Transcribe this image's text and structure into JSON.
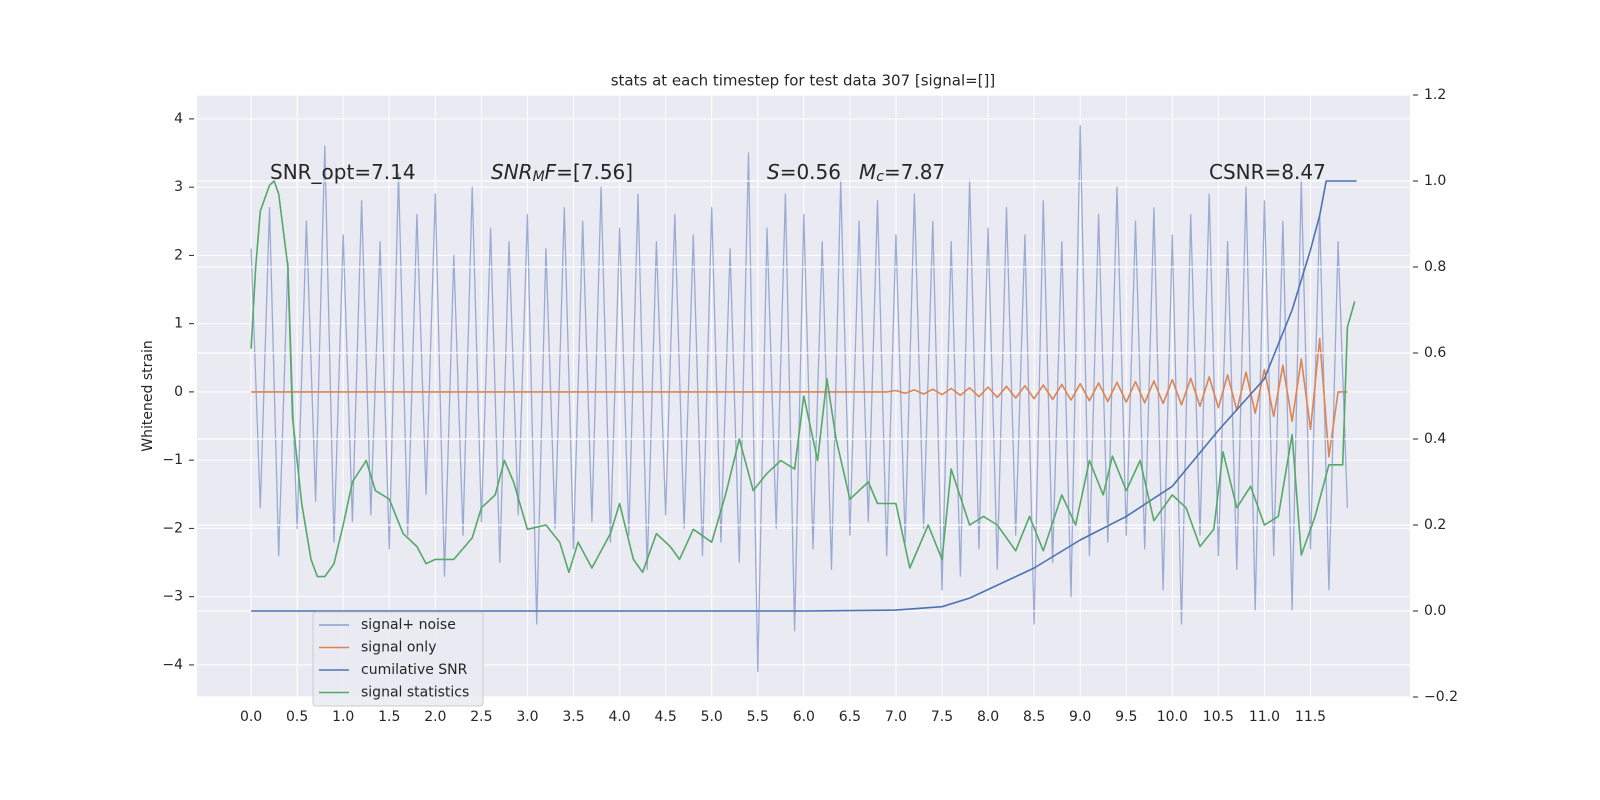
{
  "chart_data": {
    "type": "line",
    "title": "stats at each timestep for test data 307 [signal=[]]",
    "y_label": "Whitened strain",
    "grid": true,
    "legend": "lower left",
    "xlim": [
      -0.587,
      12.58
    ],
    "ylim": [
      -4.47,
      4.35
    ],
    "y2lim": [
      -0.2,
      1.2
    ],
    "xticks": [
      {
        "value": 0,
        "label": "0.0"
      },
      0.5,
      {
        "value": 1,
        "label": "1.0"
      },
      1.5,
      {
        "value": 2,
        "label": "2.0"
      },
      2.5,
      {
        "value": 3,
        "label": "3.0"
      },
      3.5,
      {
        "value": 4,
        "label": "4.0"
      },
      4.5,
      {
        "value": 5,
        "label": "5.0"
      },
      5.5,
      {
        "value": 6,
        "label": "6.0"
      },
      6.5,
      {
        "value": 7,
        "label": "7.0"
      },
      7.5,
      {
        "value": 8,
        "label": "8.0"
      },
      8.5,
      {
        "value": 9,
        "label": "9.0"
      },
      9.5,
      {
        "value": 10,
        "label": "10.0"
      },
      10.5,
      {
        "value": 11,
        "label": "11.0"
      },
      11.5
    ],
    "yticks": [
      {
        "value": -4,
        "label": "−4"
      },
      {
        "value": -3,
        "label": "−3"
      },
      {
        "value": -2,
        "label": "−2"
      },
      {
        "value": -1,
        "label": "−1"
      },
      0,
      1,
      2,
      3,
      4
    ],
    "y2ticks": [
      {
        "value": -0.2,
        "label": "−0.2"
      },
      {
        "value": 0,
        "label": "0.0"
      },
      0.2,
      0.4,
      0.6,
      0.8,
      {
        "value": 1,
        "label": "1.0"
      },
      1.2
    ],
    "annotations": [
      [
        {
          "text": "SNR_opt=7.14"
        }
      ],
      [
        {
          "text": "SNR",
          "style": "italic"
        },
        {
          "text": "M",
          "style": "sub"
        },
        {
          "text": "F",
          "style": "italic"
        },
        {
          "text": "=[7.56]"
        }
      ],
      [
        {
          "text": "S",
          "style": "italic"
        },
        {
          "text": "=0.56"
        }
      ],
      [
        {
          "text": "M",
          "style": "italic"
        },
        {
          "text": "c",
          "style": "sub"
        },
        {
          "text": "=7.87"
        }
      ],
      [
        {
          "text": "CSNR=8.47"
        }
      ]
    ],
    "x": [
      0,
      0.1,
      0.2,
      0.3,
      0.4,
      0.5,
      0.6,
      0.7,
      0.8,
      0.9,
      1,
      1.1,
      1.2,
      1.3,
      1.4,
      1.5,
      1.6,
      1.7,
      1.8,
      1.9,
      2,
      2.1,
      2.2,
      2.3,
      2.4,
      2.5,
      2.6,
      2.7,
      2.8,
      2.9,
      3,
      3.1,
      3.2,
      3.3,
      3.4,
      3.5,
      3.6,
      3.7,
      3.8,
      3.9,
      4,
      4.1,
      4.2,
      4.3,
      4.4,
      4.5,
      4.6,
      4.7,
      4.8,
      4.9,
      5,
      5.1,
      5.2,
      5.3,
      5.4,
      5.5,
      5.6,
      5.7,
      5.8,
      5.9,
      6,
      6.1,
      6.2,
      6.3,
      6.4,
      6.5,
      6.6,
      6.7,
      6.8,
      6.9,
      7,
      7.1,
      7.2,
      7.3,
      7.4,
      7.5,
      7.6,
      7.7,
      7.8,
      7.9,
      8,
      8.1,
      8.2,
      8.3,
      8.4,
      8.5,
      8.6,
      8.7,
      8.8,
      8.9,
      9,
      9.1,
      9.2,
      9.3,
      9.4,
      9.5,
      9.6,
      9.7,
      9.8,
      9.9,
      10,
      10.1,
      10.2,
      10.3,
      10.4,
      10.5,
      10.6,
      10.7,
      10.8,
      10.9,
      11,
      11.1,
      11.2,
      11.3,
      11.4,
      11.5,
      11.6,
      11.7,
      11.8,
      11.9
    ],
    "series": [
      {
        "name": "signal+ noise",
        "color": "#8c9fce",
        "values": [
          2.1,
          -1.7,
          2.7,
          -2.4,
          1.9,
          -2.0,
          2.5,
          -1.6,
          3.6,
          -2.2,
          2.3,
          -1.9,
          2.8,
          -1.8,
          2.2,
          -2.3,
          3.2,
          -2.1,
          2.6,
          -1.5,
          2.9,
          -2.7,
          2.0,
          -2.1,
          3.0,
          -1.9,
          2.4,
          -2.5,
          2.2,
          -1.8,
          2.6,
          -3.4,
          2.1,
          -2.0,
          2.7,
          -2.3,
          2.5,
          -1.9,
          3.0,
          -2.2,
          2.4,
          -2.1,
          2.9,
          -2.6,
          2.2,
          -1.8,
          2.6,
          -2.0,
          2.3,
          -2.4,
          2.7,
          -2.2,
          2.1,
          -2.5,
          3.5,
          -4.1,
          2.4,
          -2.0,
          2.9,
          -3.5,
          2.6,
          -2.3,
          2.2,
          -2.6,
          3.1,
          -2.1,
          2.5,
          -1.9,
          2.8,
          -2.4,
          2.3,
          -2.2,
          2.9,
          -2.0,
          2.5,
          -2.9,
          2.2,
          -2.7,
          3.1,
          -2.3,
          2.4,
          -2.6,
          2.7,
          -2.1,
          2.3,
          -3.4,
          2.8,
          -2.5,
          2.2,
          -3.0,
          3.9,
          -2.4,
          2.6,
          -2.2,
          3.0,
          -2.1,
          2.5,
          -2.3,
          2.7,
          -2.9,
          2.3,
          -3.4,
          2.6,
          -2.1,
          2.9,
          -2.4,
          2.2,
          -2.6,
          3.0,
          -3.2,
          2.8,
          -2.4,
          2.5,
          -3.2,
          3.1,
          -2.3,
          2.6,
          -2.9,
          2.2,
          -1.7
        ]
      },
      {
        "name": "signal only",
        "color": "#dd8452",
        "values": [
          0,
          0,
          0,
          0,
          0,
          0,
          0,
          0,
          0,
          0,
          0,
          0,
          0,
          0,
          0,
          0,
          0,
          0,
          0,
          0,
          0,
          0,
          0,
          0,
          0,
          0,
          0,
          0,
          0,
          0,
          0,
          0,
          0,
          0,
          0,
          0,
          0,
          0,
          0,
          0,
          0,
          0,
          0,
          0,
          0,
          0,
          0,
          0,
          0,
          0,
          0,
          0,
          0,
          0,
          0,
          0,
          0,
          0,
          0,
          0,
          0,
          0,
          0,
          0,
          0,
          0,
          0,
          0,
          0,
          0,
          0.02,
          -0.02,
          0.03,
          -0.03,
          0.04,
          -0.04,
          0.05,
          -0.05,
          0.06,
          -0.07,
          0.07,
          -0.08,
          0.08,
          -0.09,
          0.09,
          -0.1,
          0.1,
          -0.11,
          0.11,
          -0.12,
          0.12,
          -0.13,
          0.13,
          -0.14,
          0.14,
          -0.15,
          0.15,
          -0.16,
          0.16,
          -0.17,
          0.18,
          -0.19,
          0.2,
          -0.21,
          0.22,
          -0.23,
          0.25,
          -0.27,
          0.29,
          -0.31,
          0.33,
          -0.36,
          0.39,
          -0.43,
          0.48,
          -0.55,
          0.78,
          -0.95,
          0,
          0
        ]
      },
      {
        "name": "cumilative SNR",
        "color": "#4c72b0",
        "axis": "y2",
        "x": [
          0,
          6,
          7,
          7.5,
          7.8,
          8,
          8.5,
          9,
          9.5,
          10,
          10.5,
          11,
          11.3,
          11.5,
          11.6,
          11.67,
          12
        ],
        "values": [
          0,
          0,
          0.002,
          0.01,
          0.03,
          0.05,
          0.1,
          0.165,
          0.22,
          0.29,
          0.42,
          0.54,
          0.7,
          0.84,
          0.92,
          1.0,
          1.0
        ]
      },
      {
        "name": "signal statistics",
        "color": "#55a868",
        "axis": "y2",
        "x": [
          0,
          0.05,
          0.1,
          0.2,
          0.25,
          0.3,
          0.4,
          0.45,
          0.55,
          0.65,
          0.72,
          0.8,
          0.9,
          1,
          1.1,
          1.25,
          1.35,
          1.5,
          1.65,
          1.8,
          1.9,
          2,
          2.2,
          2.4,
          2.5,
          2.65,
          2.75,
          2.85,
          3,
          3.2,
          3.35,
          3.45,
          3.55,
          3.7,
          3.9,
          4,
          4.15,
          4.25,
          4.4,
          4.55,
          4.65,
          4.8,
          5,
          5.15,
          5.3,
          5.45,
          5.6,
          5.75,
          5.9,
          6,
          6.15,
          6.25,
          6.35,
          6.5,
          6.7,
          6.8,
          7,
          7.15,
          7.35,
          7.5,
          7.6,
          7.8,
          7.95,
          8.1,
          8.3,
          8.45,
          8.6,
          8.8,
          8.95,
          9.1,
          9.25,
          9.35,
          9.5,
          9.65,
          9.8,
          10,
          10.15,
          10.3,
          10.45,
          10.55,
          10.7,
          10.85,
          11,
          11.15,
          11.3,
          11.4,
          11.55,
          11.7,
          11.85,
          11.9,
          11.98
        ],
        "values": [
          0.61,
          0.8,
          0.93,
          0.99,
          1.0,
          0.97,
          0.8,
          0.45,
          0.25,
          0.12,
          0.08,
          0.08,
          0.11,
          0.2,
          0.3,
          0.35,
          0.28,
          0.26,
          0.18,
          0.15,
          0.11,
          0.12,
          0.12,
          0.17,
          0.24,
          0.27,
          0.35,
          0.3,
          0.19,
          0.2,
          0.16,
          0.09,
          0.16,
          0.1,
          0.18,
          0.25,
          0.12,
          0.09,
          0.18,
          0.15,
          0.12,
          0.19,
          0.16,
          0.27,
          0.4,
          0.28,
          0.32,
          0.35,
          0.33,
          0.5,
          0.35,
          0.54,
          0.4,
          0.26,
          0.3,
          0.25,
          0.25,
          0.1,
          0.2,
          0.12,
          0.33,
          0.2,
          0.22,
          0.2,
          0.14,
          0.22,
          0.14,
          0.27,
          0.2,
          0.35,
          0.27,
          0.36,
          0.28,
          0.35,
          0.21,
          0.27,
          0.24,
          0.15,
          0.19,
          0.37,
          0.24,
          0.29,
          0.2,
          0.22,
          0.41,
          0.13,
          0.22,
          0.34,
          0.34,
          0.66,
          0.72
        ]
      }
    ]
  }
}
